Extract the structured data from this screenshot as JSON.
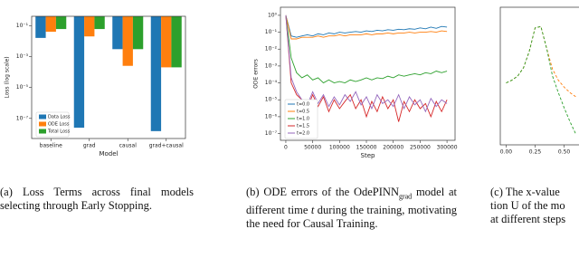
{
  "chart_data": [
    {
      "type": "bar",
      "yscale": "log",
      "xlabel": "Model",
      "ylabel": "Loss (log scale)",
      "categories": [
        "baseline",
        "grad",
        "causal",
        "grad+causal"
      ],
      "series": [
        {
          "name": "Data Loss",
          "color": "#1f77b4",
          "values": [
            0.016,
            2.5e-08,
            0.003,
            1.5e-08
          ]
        },
        {
          "name": "ODE Loss",
          "color": "#ff7f0e",
          "values": [
            0.04,
            0.02,
            0.00025,
            0.0002
          ]
        },
        {
          "name": "Total Loss",
          "color": "#2ca02c",
          "values": [
            0.06,
            0.06,
            0.003,
            0.0002
          ]
        }
      ],
      "ylim": [
        5e-09,
        0.4
      ],
      "yticks": [
        {
          "value": 0.1,
          "label": "10⁻¹"
        },
        {
          "value": 0.001,
          "label": "10⁻³"
        },
        {
          "value": 1e-05,
          "label": "10⁻⁵"
        },
        {
          "value": 1e-07,
          "label": "10⁻⁷"
        }
      ],
      "legend": "lower left",
      "caption": "(a) Loss Terms across final models selecting through Early Stopping."
    },
    {
      "type": "line",
      "yscale": "log",
      "xlabel": "Step",
      "ylabel": "ODE errors",
      "x": [
        0,
        10000,
        20000,
        30000,
        40000,
        50000,
        60000,
        70000,
        80000,
        90000,
        100000,
        110000,
        120000,
        130000,
        140000,
        150000,
        160000,
        170000,
        180000,
        190000,
        200000,
        210000,
        220000,
        230000,
        240000,
        250000,
        260000,
        270000,
        280000,
        290000,
        300000
      ],
      "series": [
        {
          "name": "t=0.0",
          "color": "#1f77b4",
          "values": [
            1.0,
            0.06,
            0.05,
            0.06,
            0.07,
            0.06,
            0.08,
            0.07,
            0.09,
            0.08,
            0.1,
            0.09,
            0.1,
            0.11,
            0.1,
            0.12,
            0.11,
            0.13,
            0.12,
            0.14,
            0.13,
            0.15,
            0.14,
            0.16,
            0.15,
            0.18,
            0.16,
            0.2,
            0.17,
            0.22,
            0.2
          ]
        },
        {
          "name": "t=0.5",
          "color": "#ff7f0e",
          "values": [
            1.0,
            0.04,
            0.04,
            0.05,
            0.05,
            0.05,
            0.06,
            0.05,
            0.06,
            0.06,
            0.07,
            0.06,
            0.07,
            0.07,
            0.07,
            0.08,
            0.07,
            0.08,
            0.08,
            0.09,
            0.08,
            0.09,
            0.09,
            0.1,
            0.09,
            0.1,
            0.1,
            0.11,
            0.1,
            0.12,
            0.11
          ]
        },
        {
          "name": "t=1.0",
          "color": "#2ca02c",
          "values": [
            1.0,
            0.003,
            0.0004,
            0.0002,
            0.0003,
            0.00015,
            0.0002,
            0.0001,
            0.00015,
            0.0001,
            0.00012,
            0.0001,
            0.00015,
            0.00012,
            0.00015,
            0.0002,
            0.00015,
            0.0002,
            0.00018,
            0.00025,
            0.0002,
            0.0003,
            0.00025,
            0.0003,
            0.00035,
            0.0003,
            0.0004,
            0.00035,
            0.0005,
            0.0004,
            0.0005
          ]
        },
        {
          "name": "t=1.5",
          "color": "#d62728",
          "values": [
            1.0,
            0.0001,
            2e-05,
            1e-05,
            3e-06,
            2e-05,
            4e-06,
            1.5e-05,
            2e-06,
            1e-05,
            3e-06,
            8e-06,
            2e-05,
            3e-06,
            1e-05,
            1e-06,
            8e-06,
            2e-06,
            1.5e-05,
            3e-06,
            1e-05,
            5e-07,
            8e-06,
            2e-06,
            1e-05,
            3e-06,
            6e-06,
            1e-06,
            8e-06,
            2e-06,
            1e-05
          ]
        },
        {
          "name": "t=2.0",
          "color": "#9467bd",
          "values": [
            1.0,
            0.0002,
            3e-05,
            1e-05,
            5e-06,
            3e-05,
            6e-06,
            2e-05,
            4e-06,
            1.5e-05,
            5e-06,
            2e-05,
            8e-06,
            3e-05,
            5e-06,
            1.5e-05,
            3e-06,
            2e-05,
            6e-06,
            1e-05,
            4e-06,
            2e-05,
            3e-06,
            1.5e-05,
            5e-06,
            1e-05,
            2e-06,
            1.2e-05,
            4e-06,
            1e-05,
            6e-06
          ]
        }
      ],
      "xlim": [
        -10000,
        315000
      ],
      "xticks": [
        0,
        50000,
        100000,
        150000,
        200000,
        250000,
        300000
      ],
      "ylim": [
        4e-08,
        3
      ],
      "yticks": [
        {
          "value": 1,
          "label": "10⁰"
        },
        {
          "value": 0.1,
          "label": "10⁻¹"
        },
        {
          "value": 0.01,
          "label": "10⁻²"
        },
        {
          "value": 0.001,
          "label": "10⁻³"
        },
        {
          "value": 0.0001,
          "label": "10⁻⁴"
        },
        {
          "value": 1e-05,
          "label": "10⁻⁵"
        },
        {
          "value": 1e-06,
          "label": "10⁻⁶"
        },
        {
          "value": 1e-07,
          "label": "10⁻⁷"
        }
      ],
      "legend": "lower left",
      "caption": [
        "(b) ODE errors of the OdePINN",
        "grad",
        " model at different time ",
        "t",
        " during the training, motivating the need for Causal Training."
      ]
    },
    {
      "type": "line",
      "x": [
        0,
        0.05,
        0.1,
        0.15,
        0.2,
        0.25,
        0.3,
        0.35,
        0.4,
        0.45,
        0.5,
        0.55,
        0.6
      ],
      "series": [
        {
          "color": "#ff7f0e",
          "dash": true,
          "values": [
            0.45,
            0.47,
            0.5,
            0.56,
            0.68,
            0.85,
            0.86,
            0.7,
            0.55,
            0.47,
            0.42,
            0.38,
            0.35
          ]
        },
        {
          "color": "#2ca02c",
          "dash": true,
          "values": [
            0.45,
            0.47,
            0.5,
            0.56,
            0.68,
            0.85,
            0.86,
            0.7,
            0.5,
            0.38,
            0.27,
            0.17,
            0.08
          ]
        }
      ],
      "xlim": [
        -0.05,
        0.8
      ],
      "xticks": [
        {
          "value": 0,
          "label": "0.00"
        },
        {
          "value": 0.25,
          "label": "0.25"
        },
        {
          "value": 0.5,
          "label": "0.50"
        }
      ],
      "ylim": [
        0,
        1
      ],
      "caption": [
        "(c) The x-value",
        "tion U of the mo",
        "at different steps"
      ]
    }
  ]
}
